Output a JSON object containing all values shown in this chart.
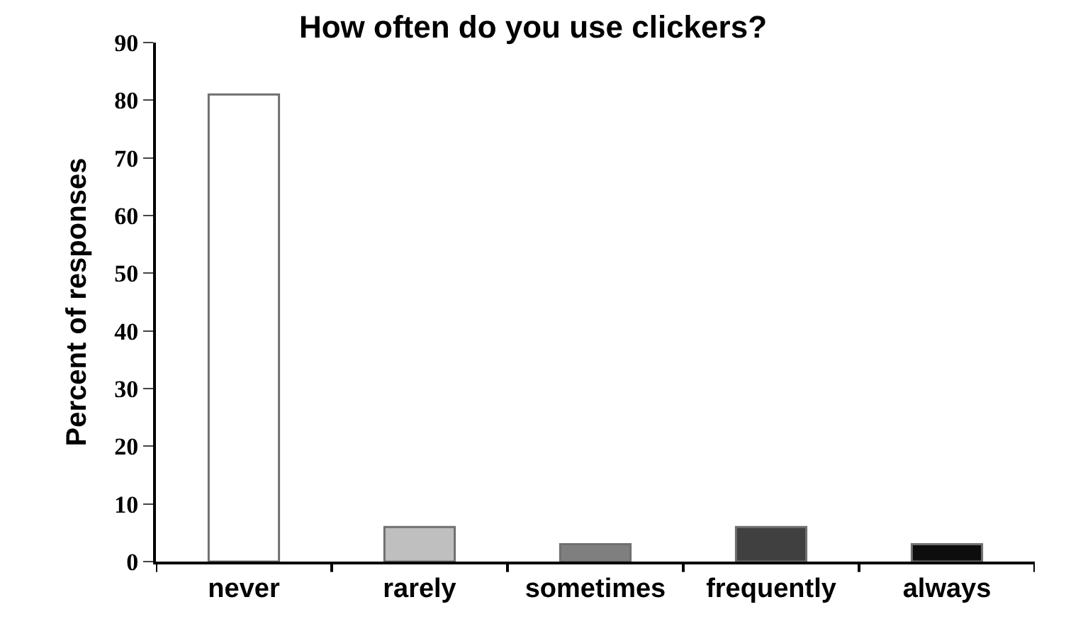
{
  "chart_data": {
    "type": "bar",
    "title": "How often do you use clickers?",
    "ylabel": "Percent of responses",
    "categories": [
      "never",
      "rarely",
      "sometimes",
      "frequently",
      "always"
    ],
    "values": [
      81,
      6,
      3,
      6,
      3
    ],
    "colors": [
      "#ffffff",
      "#bfbfbf",
      "#7f7f7f",
      "#404040",
      "#0d0d0d"
    ],
    "ylim": [
      0,
      90
    ],
    "yticks": [
      0,
      10,
      20,
      30,
      40,
      50,
      60,
      70,
      80,
      90
    ]
  }
}
